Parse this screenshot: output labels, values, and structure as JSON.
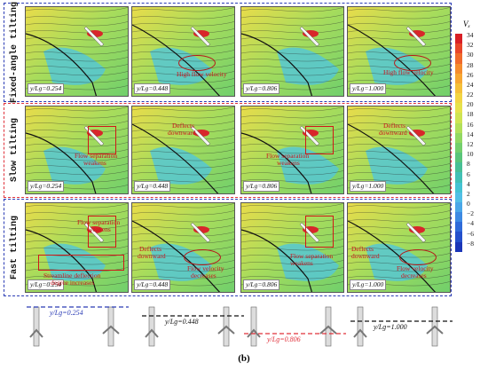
{
  "rows": [
    {
      "label": "Fixed-angle tilting",
      "frame_color": "#2a3bb5",
      "panels": [
        {
          "y_label": "y/Lɡ=0.254",
          "ann": []
        },
        {
          "y_label": "y/Lɡ=0.448",
          "ann": [
            "High flow velocity"
          ]
        },
        {
          "y_label": "y/Lɡ=0.806",
          "ann": []
        },
        {
          "y_label": "y/Lɡ=1.000",
          "ann": [
            "High flow velocity"
          ]
        }
      ]
    },
    {
      "label": "Slow tilting",
      "frame_color": "#e0303a",
      "panels": [
        {
          "y_label": "y/Lɡ=0.254",
          "ann": [
            "Flow separation",
            "weakens"
          ]
        },
        {
          "y_label": "y/Lɡ=0.448",
          "ann": [
            "Deflects",
            "downward"
          ]
        },
        {
          "y_label": "y/Lɡ=0.806",
          "ann": [
            "Flow separation",
            "weakens"
          ]
        },
        {
          "y_label": "y/Lɡ=1.000",
          "ann": [
            "Deflects",
            "downward"
          ]
        }
      ]
    },
    {
      "label": "Fast tilting",
      "frame_color": "#2a3bb5",
      "panels": [
        {
          "y_label": "y/Lɡ=0.254",
          "ann": [
            "Flow separation",
            "weakens",
            "Streamline deflection",
            "degree increases"
          ]
        },
        {
          "y_label": "y/Lɡ=0.448",
          "ann": [
            "Deflects",
            "downward",
            "Flow velocity",
            "decreases"
          ]
        },
        {
          "y_label": "y/Lɡ=0.806",
          "ann": [
            "Flow separation",
            "weakens"
          ]
        },
        {
          "y_label": "y/Lɡ=1.000",
          "ann": [
            "Deflects",
            "downward",
            "Flow velocity",
            "decreases"
          ]
        }
      ]
    }
  ],
  "colorbar": {
    "title": "Vₓ",
    "ticks": [
      "34",
      "32",
      "30",
      "28",
      "26",
      "24",
      "22",
      "20",
      "18",
      "16",
      "14",
      "12",
      "10",
      "8",
      "6",
      "4",
      "2",
      "0",
      "−2",
      "−4",
      "−6",
      "−8"
    ],
    "colors": [
      "#d81f26",
      "#e8452a",
      "#f06a2c",
      "#f58c2e",
      "#f7a733",
      "#f5c03a",
      "#f2d544",
      "#e6e24c",
      "#cfe453",
      "#b2e05a",
      "#92d862",
      "#74cf6d",
      "#5ac57a",
      "#48bf95",
      "#42c0b5",
      "#45c3d3",
      "#52bfe6",
      "#4aa7e8",
      "#3d8ae3",
      "#2f6bd9",
      "#2450cc",
      "#1b36b8"
    ]
  },
  "legend": [
    {
      "text": "y/Lɡ=0.254",
      "color": "#2a3bb5"
    },
    {
      "text": "y/Lɡ=0.448",
      "color": "#111111"
    },
    {
      "text": "y/Lɡ=0.806",
      "color": "#e0303a"
    },
    {
      "text": "y/Lɡ=1.000",
      "color": "#111111"
    }
  ],
  "caption": "(b)"
}
